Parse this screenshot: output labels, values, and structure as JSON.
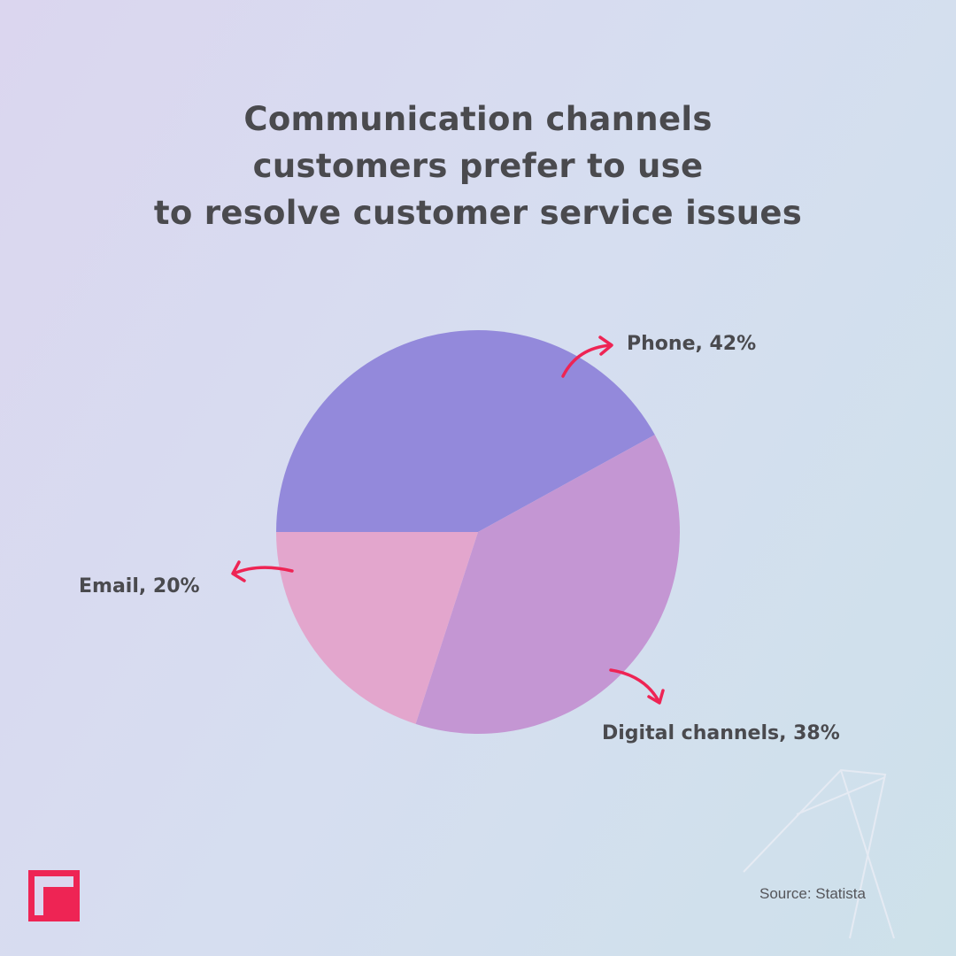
{
  "title_lines": [
    "Communication channels",
    "customers prefer to use",
    "to resolve customer service issues"
  ],
  "source": "Source: Statista",
  "colors": {
    "phone": "#9389db",
    "digital": "#c496d3",
    "email": "#e3a6cd",
    "arrow": "#ee2454",
    "text": "#4a4a4e"
  },
  "chart_data": {
    "type": "pie",
    "title": "Communication channels customers prefer to use to resolve customer service issues",
    "slices": [
      {
        "label": "Phone, 42%",
        "category": "Phone",
        "value": 42,
        "color": "#9389db"
      },
      {
        "label": "Digital channels, 38%",
        "category": "Digital channels",
        "value": 38,
        "color": "#c496d3"
      },
      {
        "label": "Email, 20%",
        "category": "Email",
        "value": 20,
        "color": "#e3a6cd"
      }
    ],
    "legend": "none"
  },
  "logo_icon": "brand-t-logo-icon"
}
